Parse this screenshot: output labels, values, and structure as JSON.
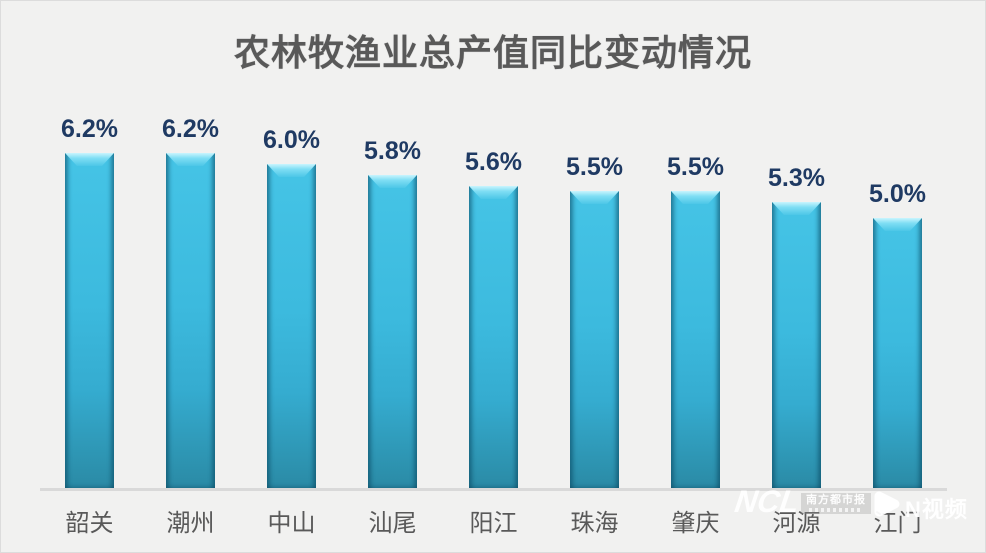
{
  "title": "农林牧渔业总产值同比变动情况",
  "chart_data": {
    "type": "bar",
    "title": "农林牧渔业总产值同比变动情况",
    "categories": [
      "韶关",
      "潮州",
      "中山",
      "汕尾",
      "阳江",
      "珠海",
      "肇庆",
      "河源",
      "江门"
    ],
    "values": [
      6.2,
      6.2,
      6.0,
      5.8,
      5.6,
      5.5,
      5.5,
      5.3,
      5.0
    ],
    "value_labels": [
      "6.2%",
      "6.2%",
      "6.0%",
      "5.8%",
      "5.6%",
      "5.5%",
      "5.5%",
      "5.3%",
      "5.0%"
    ],
    "xlabel": "",
    "ylabel": "",
    "ylim": [
      0,
      7
    ],
    "grid": false,
    "legend": false,
    "value_labels_shown": true,
    "bar_color": "#3cbade",
    "bar_edge_color": "#1d7693",
    "bar_highlight_color": "#7fdef4",
    "value_label_color": "#1f3a63",
    "category_label_color": "#595959",
    "title_color": "#595959",
    "axis_color": "#d9d9d9",
    "background_color": "#f1f1f0"
  },
  "watermark": {
    "logo": "NCL",
    "brand": "南方都市报",
    "video": "N视频",
    "color": "#ffffff"
  }
}
